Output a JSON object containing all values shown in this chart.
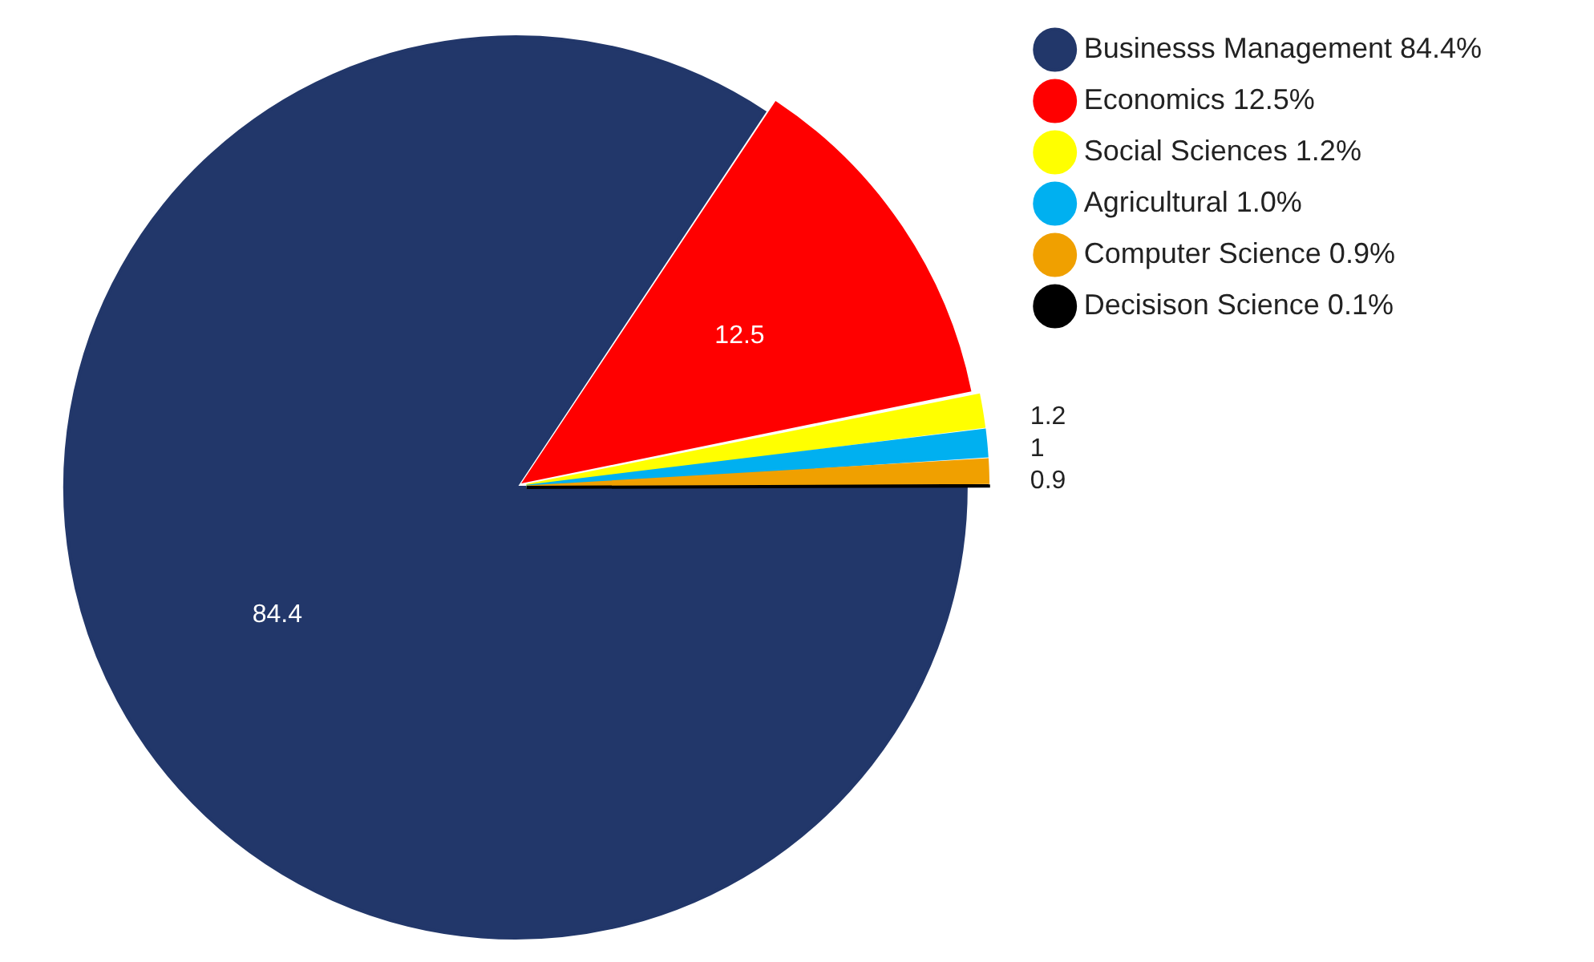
{
  "chart_data": {
    "type": "pie",
    "categories": [
      "Businesss Management 84.4%",
      "Economics 12.5%",
      "Social Sciences 1.2%",
      "Agricultural 1.0%",
      "Computer Science 0.9%",
      "Decisison Science 0.1%"
    ],
    "values": [
      84.4,
      12.5,
      1.2,
      1.0,
      0.9,
      0.1
    ],
    "colors": [
      "#22376a",
      "#ff0000",
      "#ffff00",
      "#00b0f0",
      "#f0a000",
      "#000000"
    ],
    "value_labels": [
      "84.4",
      "12.5",
      "1.2",
      "1",
      "0.9",
      null
    ],
    "legend": "right"
  }
}
